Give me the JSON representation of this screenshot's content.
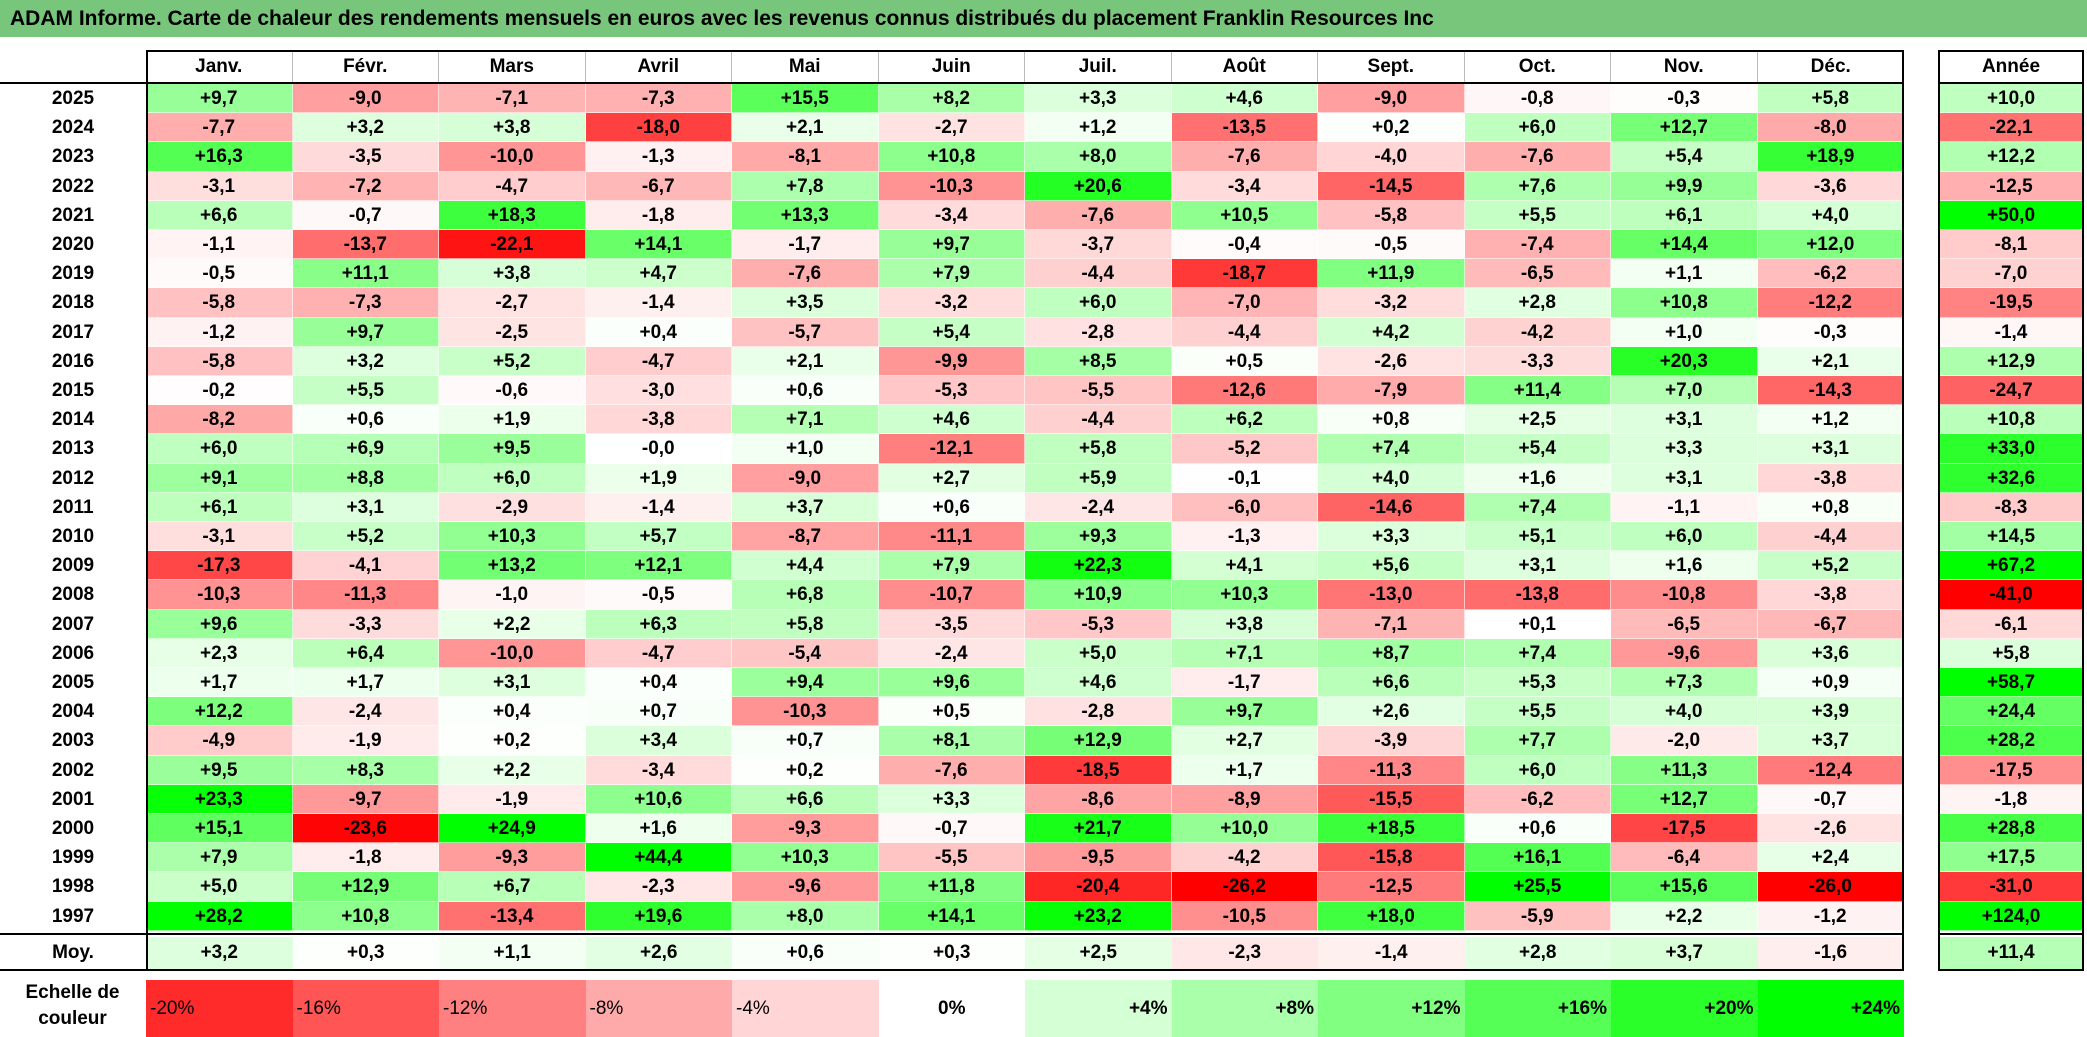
{
  "title": "ADAM Informe. Carte de chaleur des rendements mensuels en euros avec les revenus connus distribués du placement Franklin Resources Inc",
  "colors": {
    "title_bg": "#78c67b",
    "neg_max": "#ff0000",
    "pos_max": "#00ff00",
    "neutral": "#ffffff"
  },
  "chart_data": {
    "type": "heatmap",
    "title": "ADAM Informe. Carte de chaleur des rendements mensuels en euros avec les revenus connus distribués du placement Franklin Resources Inc",
    "columns": [
      "Janv.",
      "Févr.",
      "Mars",
      "Avril",
      "Mai",
      "Juin",
      "Juil.",
      "Août",
      "Sept.",
      "Oct.",
      "Nov.",
      "Déc."
    ],
    "year_column": "Année",
    "rows": [
      {
        "year": "2025",
        "values": [
          "+9,7",
          "-9,0",
          "-7,1",
          "-7,3",
          "+15,5",
          "+8,2",
          "+3,3",
          "+4,6",
          "-9,0",
          "-0,8",
          "-0,3",
          "+5,8"
        ],
        "annual": "+10,0"
      },
      {
        "year": "2024",
        "values": [
          "-7,7",
          "+3,2",
          "+3,8",
          "-18,0",
          "+2,1",
          "-2,7",
          "+1,2",
          "-13,5",
          "+0,2",
          "+6,0",
          "+12,7",
          "-8,0"
        ],
        "annual": "-22,1"
      },
      {
        "year": "2023",
        "values": [
          "+16,3",
          "-3,5",
          "-10,0",
          "-1,3",
          "-8,1",
          "+10,8",
          "+8,0",
          "-7,6",
          "-4,0",
          "-7,6",
          "+5,4",
          "+18,9"
        ],
        "annual": "+12,2"
      },
      {
        "year": "2022",
        "values": [
          "-3,1",
          "-7,2",
          "-4,7",
          "-6,7",
          "+7,8",
          "-10,3",
          "+20,6",
          "-3,4",
          "-14,5",
          "+7,6",
          "+9,9",
          "-3,6"
        ],
        "annual": "-12,5"
      },
      {
        "year": "2021",
        "values": [
          "+6,6",
          "-0,7",
          "+18,3",
          "-1,8",
          "+13,3",
          "-3,4",
          "-7,6",
          "+10,5",
          "-5,8",
          "+5,5",
          "+6,1",
          "+4,0"
        ],
        "annual": "+50,0"
      },
      {
        "year": "2020",
        "values": [
          "-1,1",
          "-13,7",
          "-22,1",
          "+14,1",
          "-1,7",
          "+9,7",
          "-3,7",
          "-0,4",
          "-0,5",
          "-7,4",
          "+14,4",
          "+12,0"
        ],
        "annual": "-8,1"
      },
      {
        "year": "2019",
        "values": [
          "-0,5",
          "+11,1",
          "+3,8",
          "+4,7",
          "-7,6",
          "+7,9",
          "-4,4",
          "-18,7",
          "+11,9",
          "-6,5",
          "+1,1",
          "-6,2"
        ],
        "annual": "-7,0"
      },
      {
        "year": "2018",
        "values": [
          "-5,8",
          "-7,3",
          "-2,7",
          "-1,4",
          "+3,5",
          "-3,2",
          "+6,0",
          "-7,0",
          "-3,2",
          "+2,8",
          "+10,8",
          "-12,2"
        ],
        "annual": "-19,5"
      },
      {
        "year": "2017",
        "values": [
          "-1,2",
          "+9,7",
          "-2,5",
          "+0,4",
          "-5,7",
          "+5,4",
          "-2,8",
          "-4,4",
          "+4,2",
          "-4,2",
          "+1,0",
          "-0,3"
        ],
        "annual": "-1,4"
      },
      {
        "year": "2016",
        "values": [
          "-5,8",
          "+3,2",
          "+5,2",
          "-4,7",
          "+2,1",
          "-9,9",
          "+8,5",
          "+0,5",
          "-2,6",
          "-3,3",
          "+20,3",
          "+2,1"
        ],
        "annual": "+12,9"
      },
      {
        "year": "2015",
        "values": [
          "-0,2",
          "+5,5",
          "-0,6",
          "-3,0",
          "+0,6",
          "-5,3",
          "-5,5",
          "-12,6",
          "-7,9",
          "+11,4",
          "+7,0",
          "-14,3"
        ],
        "annual": "-24,7"
      },
      {
        "year": "2014",
        "values": [
          "-8,2",
          "+0,6",
          "+1,9",
          "-3,8",
          "+7,1",
          "+4,6",
          "-4,4",
          "+6,2",
          "+0,8",
          "+2,5",
          "+3,1",
          "+1,2"
        ],
        "annual": "+10,8"
      },
      {
        "year": "2013",
        "values": [
          "+6,0",
          "+6,9",
          "+9,5",
          "-0,0",
          "+1,0",
          "-12,1",
          "+5,8",
          "-5,2",
          "+7,4",
          "+5,4",
          "+3,3",
          "+3,1"
        ],
        "annual": "+33,0"
      },
      {
        "year": "2012",
        "values": [
          "+9,1",
          "+8,8",
          "+6,0",
          "+1,9",
          "-9,0",
          "+2,7",
          "+5,9",
          "-0,1",
          "+4,0",
          "+1,6",
          "+3,1",
          "-3,8"
        ],
        "annual": "+32,6"
      },
      {
        "year": "2011",
        "values": [
          "+6,1",
          "+3,1",
          "-2,9",
          "-1,4",
          "+3,7",
          "+0,6",
          "-2,4",
          "-6,0",
          "-14,6",
          "+7,4",
          "-1,1",
          "+0,8"
        ],
        "annual": "-8,3"
      },
      {
        "year": "2010",
        "values": [
          "-3,1",
          "+5,2",
          "+10,3",
          "+5,7",
          "-8,7",
          "-11,1",
          "+9,3",
          "-1,3",
          "+3,3",
          "+5,1",
          "+6,0",
          "-4,4"
        ],
        "annual": "+14,5"
      },
      {
        "year": "2009",
        "values": [
          "-17,3",
          "-4,1",
          "+13,2",
          "+12,1",
          "+4,4",
          "+7,9",
          "+22,3",
          "+4,1",
          "+5,6",
          "+3,1",
          "+1,6",
          "+5,2"
        ],
        "annual": "+67,2"
      },
      {
        "year": "2008",
        "values": [
          "-10,3",
          "-11,3",
          "-1,0",
          "-0,5",
          "+6,8",
          "-10,7",
          "+10,9",
          "+10,3",
          "-13,0",
          "-13,8",
          "-10,8",
          "-3,8"
        ],
        "annual": "-41,0"
      },
      {
        "year": "2007",
        "values": [
          "+9,6",
          "-3,3",
          "+2,2",
          "+6,3",
          "+5,8",
          "-3,5",
          "-5,3",
          "+3,8",
          "-7,1",
          "+0,1",
          "-6,5",
          "-6,7"
        ],
        "annual": "-6,1"
      },
      {
        "year": "2006",
        "values": [
          "+2,3",
          "+6,4",
          "-10,0",
          "-4,7",
          "-5,4",
          "-2,4",
          "+5,0",
          "+7,1",
          "+8,7",
          "+7,4",
          "-9,6",
          "+3,6"
        ],
        "annual": "+5,8"
      },
      {
        "year": "2005",
        "values": [
          "+1,7",
          "+1,7",
          "+3,1",
          "+0,4",
          "+9,4",
          "+9,6",
          "+4,6",
          "-1,7",
          "+6,6",
          "+5,3",
          "+7,3",
          "+0,9"
        ],
        "annual": "+58,7"
      },
      {
        "year": "2004",
        "values": [
          "+12,2",
          "-2,4",
          "+0,4",
          "+0,7",
          "-10,3",
          "+0,5",
          "-2,8",
          "+9,7",
          "+2,6",
          "+5,5",
          "+4,0",
          "+3,9"
        ],
        "annual": "+24,4"
      },
      {
        "year": "2003",
        "values": [
          "-4,9",
          "-1,9",
          "+0,2",
          "+3,4",
          "+0,7",
          "+8,1",
          "+12,9",
          "+2,7",
          "-3,9",
          "+7,7",
          "-2,0",
          "+3,7"
        ],
        "annual": "+28,2"
      },
      {
        "year": "2002",
        "values": [
          "+9,5",
          "+8,3",
          "+2,2",
          "-3,4",
          "+0,2",
          "-7,6",
          "-18,5",
          "+1,7",
          "-11,3",
          "+6,0",
          "+11,3",
          "-12,4"
        ],
        "annual": "-17,5"
      },
      {
        "year": "2001",
        "values": [
          "+23,3",
          "-9,7",
          "-1,9",
          "+10,6",
          "+6,6",
          "+3,3",
          "-8,6",
          "-8,9",
          "-15,5",
          "-6,2",
          "+12,7",
          "-0,7"
        ],
        "annual": "-1,8"
      },
      {
        "year": "2000",
        "values": [
          "+15,1",
          "-23,6",
          "+24,9",
          "+1,6",
          "-9,3",
          "-0,7",
          "+21,7",
          "+10,0",
          "+18,5",
          "+0,6",
          "-17,5",
          "-2,6"
        ],
        "annual": "+28,8"
      },
      {
        "year": "1999",
        "values": [
          "+7,9",
          "-1,8",
          "-9,3",
          "+44,4",
          "+10,3",
          "-5,5",
          "-9,5",
          "-4,2",
          "-15,8",
          "+16,1",
          "-6,4",
          "+2,4"
        ],
        "annual": "+17,5"
      },
      {
        "year": "1998",
        "values": [
          "+5,0",
          "+12,9",
          "+6,7",
          "-2,3",
          "-9,6",
          "+11,8",
          "-20,4",
          "-26,2",
          "-12,5",
          "+25,5",
          "+15,6",
          "-26,0"
        ],
        "annual": "-31,0"
      },
      {
        "year": "1997",
        "values": [
          "+28,2",
          "+10,8",
          "-13,4",
          "+19,6",
          "+8,0",
          "+14,1",
          "+23,2",
          "-10,5",
          "+18,0",
          "-5,9",
          "+2,2",
          "-1,2"
        ],
        "annual": "+124,0"
      }
    ],
    "average": {
      "label": "Moy.",
      "values": [
        "+3,2",
        "+0,3",
        "+1,1",
        "+2,6",
        "+0,6",
        "+0,3",
        "+2,5",
        "-2,3",
        "-1,4",
        "+2,8",
        "+3,7",
        "-1,6"
      ],
      "annual": "+11,4"
    },
    "scale": {
      "label_line1": "Echelle de",
      "label_line2": "couleur",
      "steps": [
        "-20%",
        "-16%",
        "-12%",
        "-8%",
        "-4%",
        "0%",
        "+4%",
        "+8%",
        "+12%",
        "+16%",
        "+20%",
        "+24%"
      ],
      "step_values": [
        -20,
        -16,
        -12,
        -8,
        -4,
        0,
        4,
        8,
        12,
        16,
        20,
        24
      ]
    }
  }
}
